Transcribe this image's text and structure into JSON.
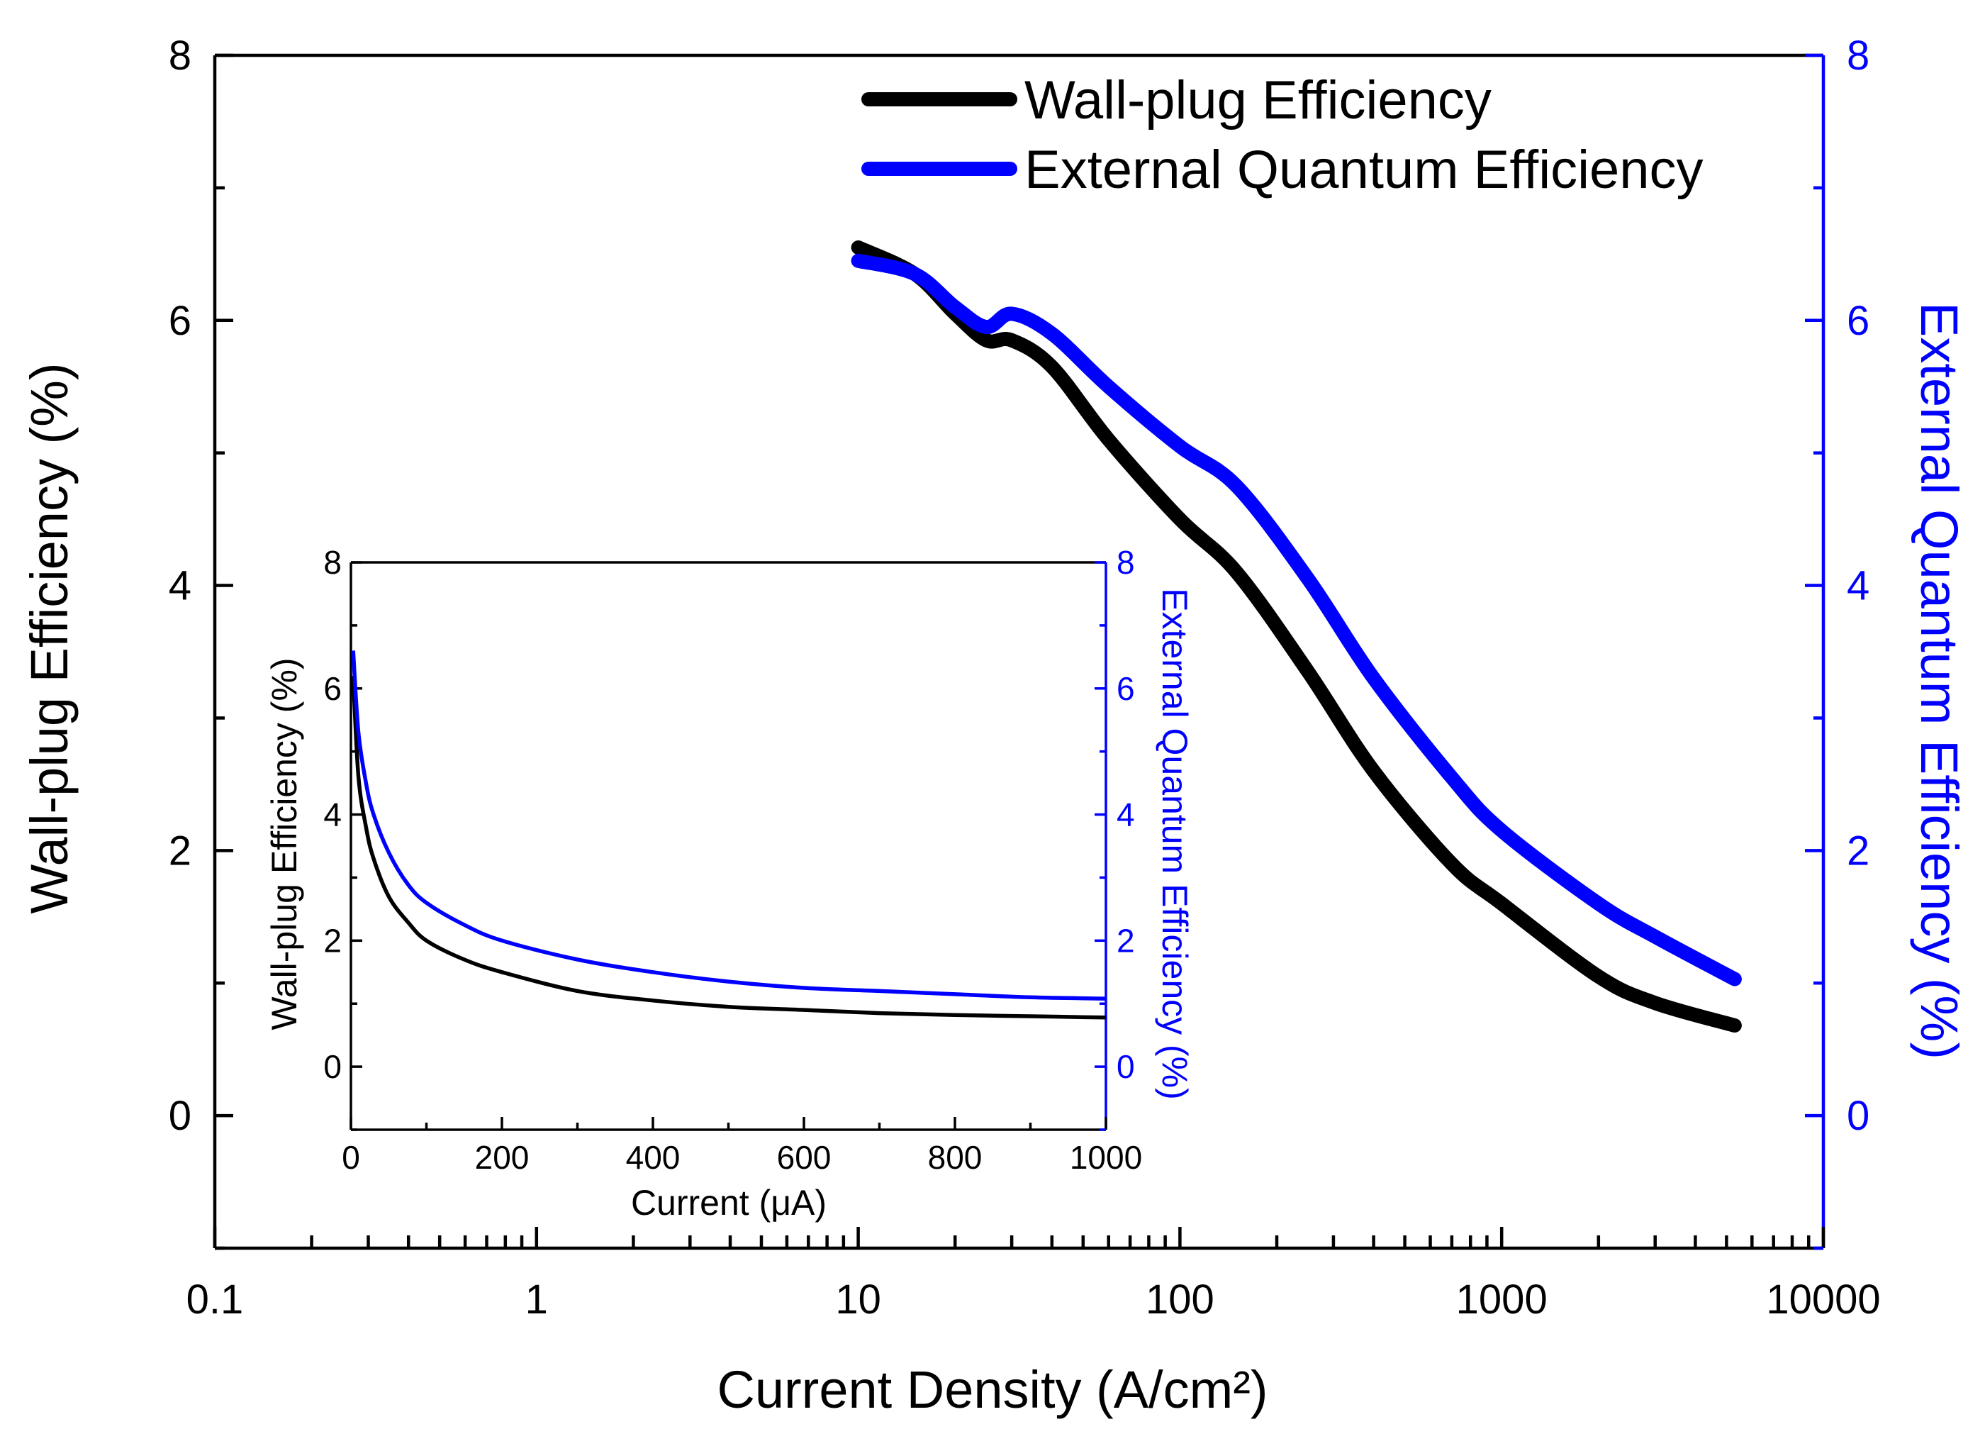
{
  "chart_data": [
    {
      "id": "main",
      "type": "line",
      "xlabel": "Current Density (A/cm²)",
      "ylabel": "Wall-plug Efficiency (%)",
      "ylabel_right": "External Quantum Efficiency (%)",
      "xscale": "log",
      "xlim": [
        0.1,
        10000
      ],
      "ylim": [
        -1,
        8
      ],
      "ylim_right": [
        -1,
        8
      ],
      "x_ticks": [
        "0.1",
        "1",
        "10",
        "100",
        "1000",
        "10000"
      ],
      "y_ticks": [
        "0",
        "2",
        "4",
        "6",
        "8"
      ],
      "y_ticks_right": [
        "0",
        "2",
        "4",
        "6",
        "8"
      ],
      "legend_position": "top-right",
      "series": [
        {
          "name": "Wall-plug Efficiency",
          "axis": "left",
          "color": "#000000",
          "x": [
            10,
            15,
            20,
            25,
            30,
            40,
            60,
            100,
            150,
            250,
            400,
            700,
            1000,
            2000,
            3000,
            5300
          ],
          "y": [
            6.55,
            6.35,
            6.05,
            5.85,
            5.85,
            5.65,
            5.1,
            4.5,
            4.1,
            3.35,
            2.6,
            1.9,
            1.6,
            1.05,
            0.85,
            0.68
          ]
        },
        {
          "name": "External Quantum Efficiency",
          "axis": "right",
          "color": "#0000ff",
          "x": [
            10,
            15,
            20,
            25,
            30,
            40,
            60,
            100,
            150,
            250,
            400,
            700,
            1000,
            2000,
            3000,
            5300
          ],
          "y": [
            6.45,
            6.35,
            6.1,
            5.95,
            6.05,
            5.9,
            5.5,
            5.05,
            4.75,
            4.05,
            3.3,
            2.55,
            2.15,
            1.6,
            1.35,
            1.03
          ]
        }
      ]
    },
    {
      "id": "inset",
      "type": "line",
      "xlabel": "Current (μA)",
      "ylabel": "Wall-plug Efficiency (%)",
      "ylabel_right": "External Quantum Efficiency (%)",
      "xlim": [
        0,
        1000
      ],
      "ylim": [
        -1,
        8
      ],
      "ylim_right": [
        -1,
        8
      ],
      "x_ticks": [
        "0",
        "200",
        "400",
        "600",
        "800",
        "1000"
      ],
      "y_ticks": [
        "0",
        "2",
        "4",
        "6",
        "8"
      ],
      "y_ticks_right": [
        "0",
        "2",
        "4",
        "6",
        "8"
      ],
      "series": [
        {
          "name": "Wall-plug Efficiency",
          "axis": "left",
          "color": "#000000",
          "x": [
            3,
            10,
            20,
            30,
            50,
            75,
            100,
            150,
            200,
            300,
            400,
            500,
            600,
            700,
            800,
            900,
            1000
          ],
          "y": [
            6.2,
            4.6,
            3.8,
            3.3,
            2.7,
            2.3,
            2.0,
            1.7,
            1.5,
            1.2,
            1.05,
            0.95,
            0.9,
            0.85,
            0.82,
            0.8,
            0.78
          ]
        },
        {
          "name": "External Quantum Efficiency",
          "axis": "right",
          "color": "#0000ff",
          "x": [
            3,
            10,
            20,
            30,
            50,
            75,
            100,
            150,
            200,
            300,
            400,
            500,
            600,
            700,
            800,
            900,
            1000
          ],
          "y": [
            6.6,
            5.3,
            4.5,
            4.0,
            3.4,
            2.9,
            2.6,
            2.25,
            2.0,
            1.7,
            1.5,
            1.35,
            1.25,
            1.2,
            1.15,
            1.1,
            1.08
          ]
        }
      ]
    }
  ]
}
